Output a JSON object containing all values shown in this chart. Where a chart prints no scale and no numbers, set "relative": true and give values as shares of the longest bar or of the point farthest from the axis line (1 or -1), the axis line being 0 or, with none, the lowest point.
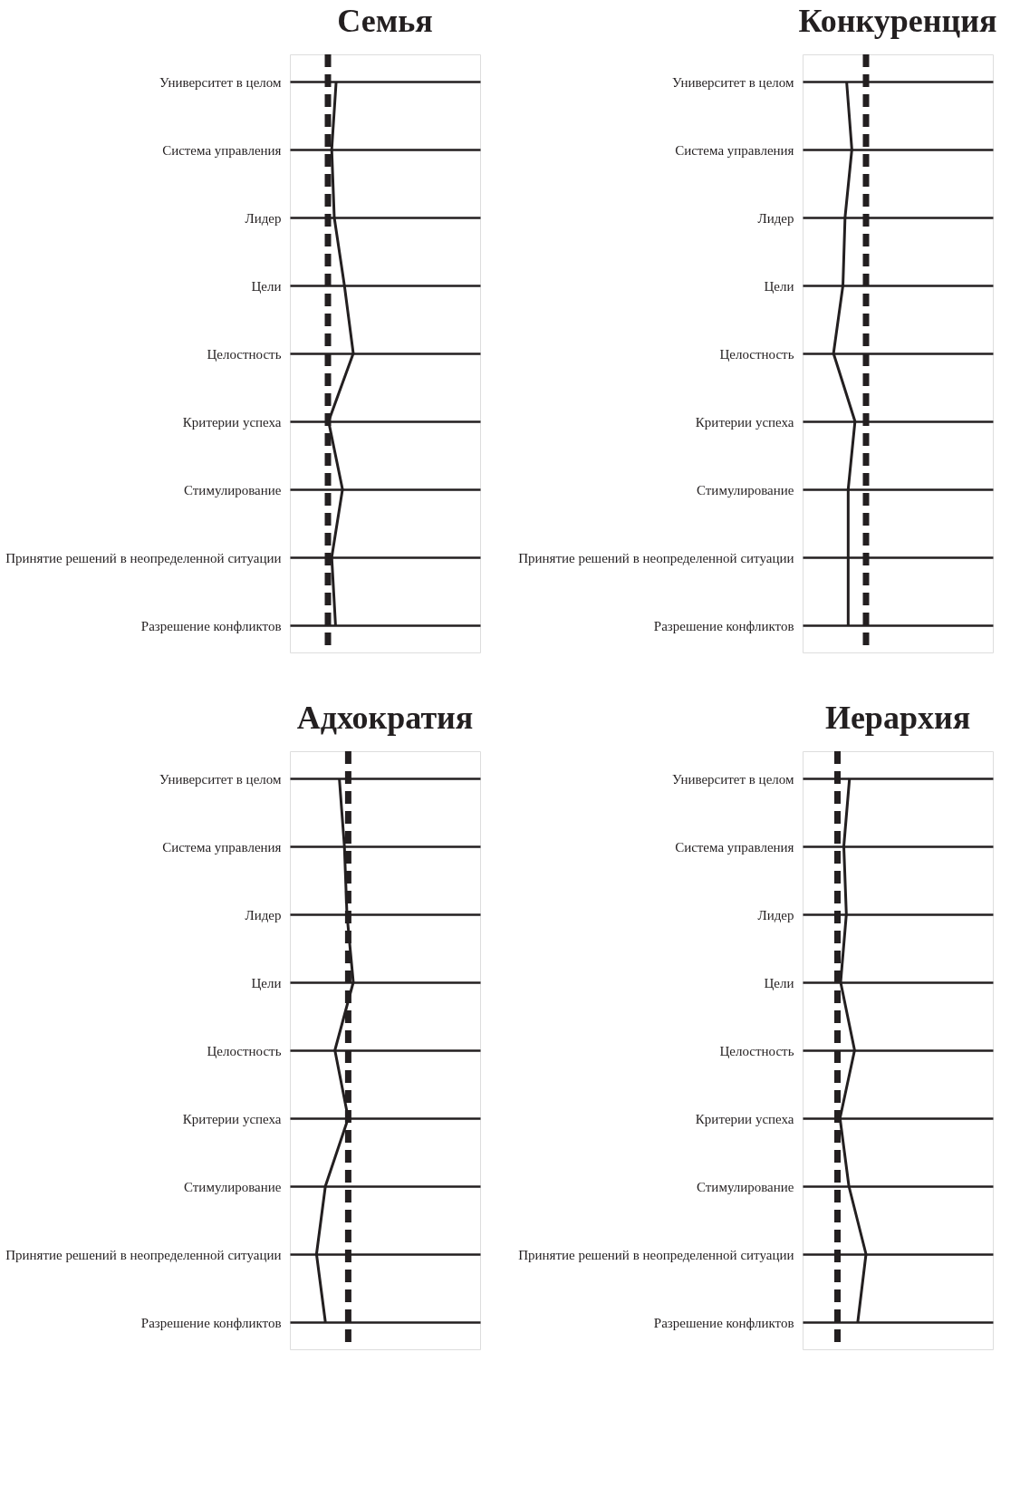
{
  "chart_data": [
    {
      "type": "line",
      "title": "Семья",
      "orientation": "horizontal",
      "relative": true,
      "grid": "y",
      "marker": "none",
      "line_style": "solid",
      "categories": [
        "Университет в целом",
        "Система управления",
        "Лидер",
        "Цели",
        "Целостность",
        "Критерии успеха",
        "Стимулирование",
        "Принятие решений в неопределенной ситуации",
        "Разрешение конфликтов"
      ],
      "series": [
        {
          "color": "#231f20",
          "values": [
            0.73,
            0.66,
            0.7,
            0.86,
            1.0,
            0.61,
            0.83,
            0.66,
            0.72
          ]
        }
      ],
      "ref_lines": [
        {
          "axis": "x",
          "value": 0.6,
          "color": "#231f20",
          "line_style": "dashed"
        }
      ]
    },
    {
      "type": "line",
      "title": "Конкуренция",
      "orientation": "horizontal",
      "relative": true,
      "grid": "y",
      "marker": "none",
      "line_style": "solid",
      "categories": [
        "Университет в целом",
        "Система управления",
        "Лидер",
        "Цели",
        "Целостность",
        "Критерии успеха",
        "Стимулирование",
        "Принятие решений в неопределенной ситуации",
        "Разрешение конфликтов"
      ],
      "series": [
        {
          "color": "#231f20",
          "values": [
            0.84,
            0.94,
            0.81,
            0.77,
            0.59,
            1.0,
            0.87,
            0.87,
            0.87
          ]
        }
      ],
      "ref_lines": [
        {
          "axis": "x",
          "value": 1.21,
          "color": "#231f20",
          "line_style": "dashed"
        }
      ]
    },
    {
      "type": "line",
      "title": "Адхократия",
      "orientation": "horizontal",
      "relative": true,
      "grid": "y",
      "marker": "none",
      "line_style": "solid",
      "categories": [
        "Университет в целом",
        "Система управления",
        "Лидер",
        "Цели",
        "Целостность",
        "Критерии успеха",
        "Стимулирование",
        "Принятие решений в неопределенной ситуации",
        "Разрешение конфликтов"
      ],
      "series": [
        {
          "color": "#231f20",
          "values": [
            0.78,
            0.86,
            0.9,
            1.0,
            0.71,
            0.92,
            0.56,
            0.42,
            0.56
          ]
        }
      ],
      "ref_lines": [
        {
          "axis": "x",
          "value": 0.92,
          "color": "#231f20",
          "line_style": "dashed"
        }
      ]
    },
    {
      "type": "line",
      "title": "Иерархия",
      "orientation": "horizontal",
      "relative": true,
      "grid": "y",
      "marker": "none",
      "line_style": "solid",
      "categories": [
        "Университет в целом",
        "Система управления",
        "Лидер",
        "Цели",
        "Целостность",
        "Критерии успеха",
        "Стимулирование",
        "Принятие решений в неопределенной ситуации",
        "Разрешение конфликтов"
      ],
      "series": [
        {
          "color": "#231f20",
          "values": [
            0.74,
            0.65,
            0.69,
            0.6,
            0.82,
            0.59,
            0.73,
            1.0,
            0.87
          ]
        }
      ],
      "ref_lines": [
        {
          "axis": "x",
          "value": 0.55,
          "color": "#231f20",
          "line_style": "dashed"
        }
      ]
    }
  ]
}
